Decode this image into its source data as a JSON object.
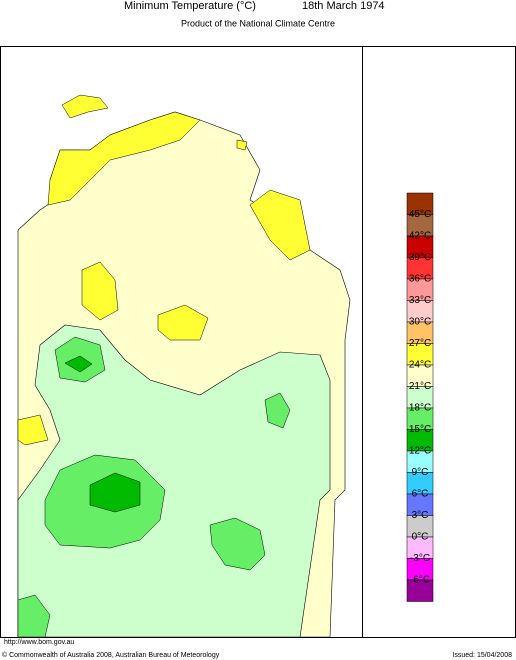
{
  "header": {
    "title": "Minimum Temperature (°C)",
    "date": "18th March 1974",
    "subtitle": "Product of the National Climate Centre"
  },
  "legend": {
    "colors": [
      "#993300",
      "#a5673f",
      "#cc0000",
      "#ff3333",
      "#ff9999",
      "#ffcccc",
      "#ffc266",
      "#ffff33",
      "#ffffcc",
      "#ccffcc",
      "#66ee66",
      "#00bb00",
      "#99ffff",
      "#33ccff",
      "#6677ff",
      "#cccccc",
      "#ffbbff",
      "#ff00ff",
      "#990099"
    ],
    "labels": [
      "45°C",
      "42°C",
      "39°C",
      "36°C",
      "33°C",
      "30°C",
      "27°C",
      "24°C",
      "21°C",
      "18°C",
      "15°C",
      "12°C",
      "9°C",
      "6°C",
      "3°C",
      "0°C",
      "-3°C",
      "-6°C"
    ]
  },
  "footer": {
    "url": "http://www.bom.gov.au",
    "copyright": "© Commonwealth of Australia 2008, Australian Bureau of Meteorology",
    "issued": "Issued: 15/04/2008"
  }
}
